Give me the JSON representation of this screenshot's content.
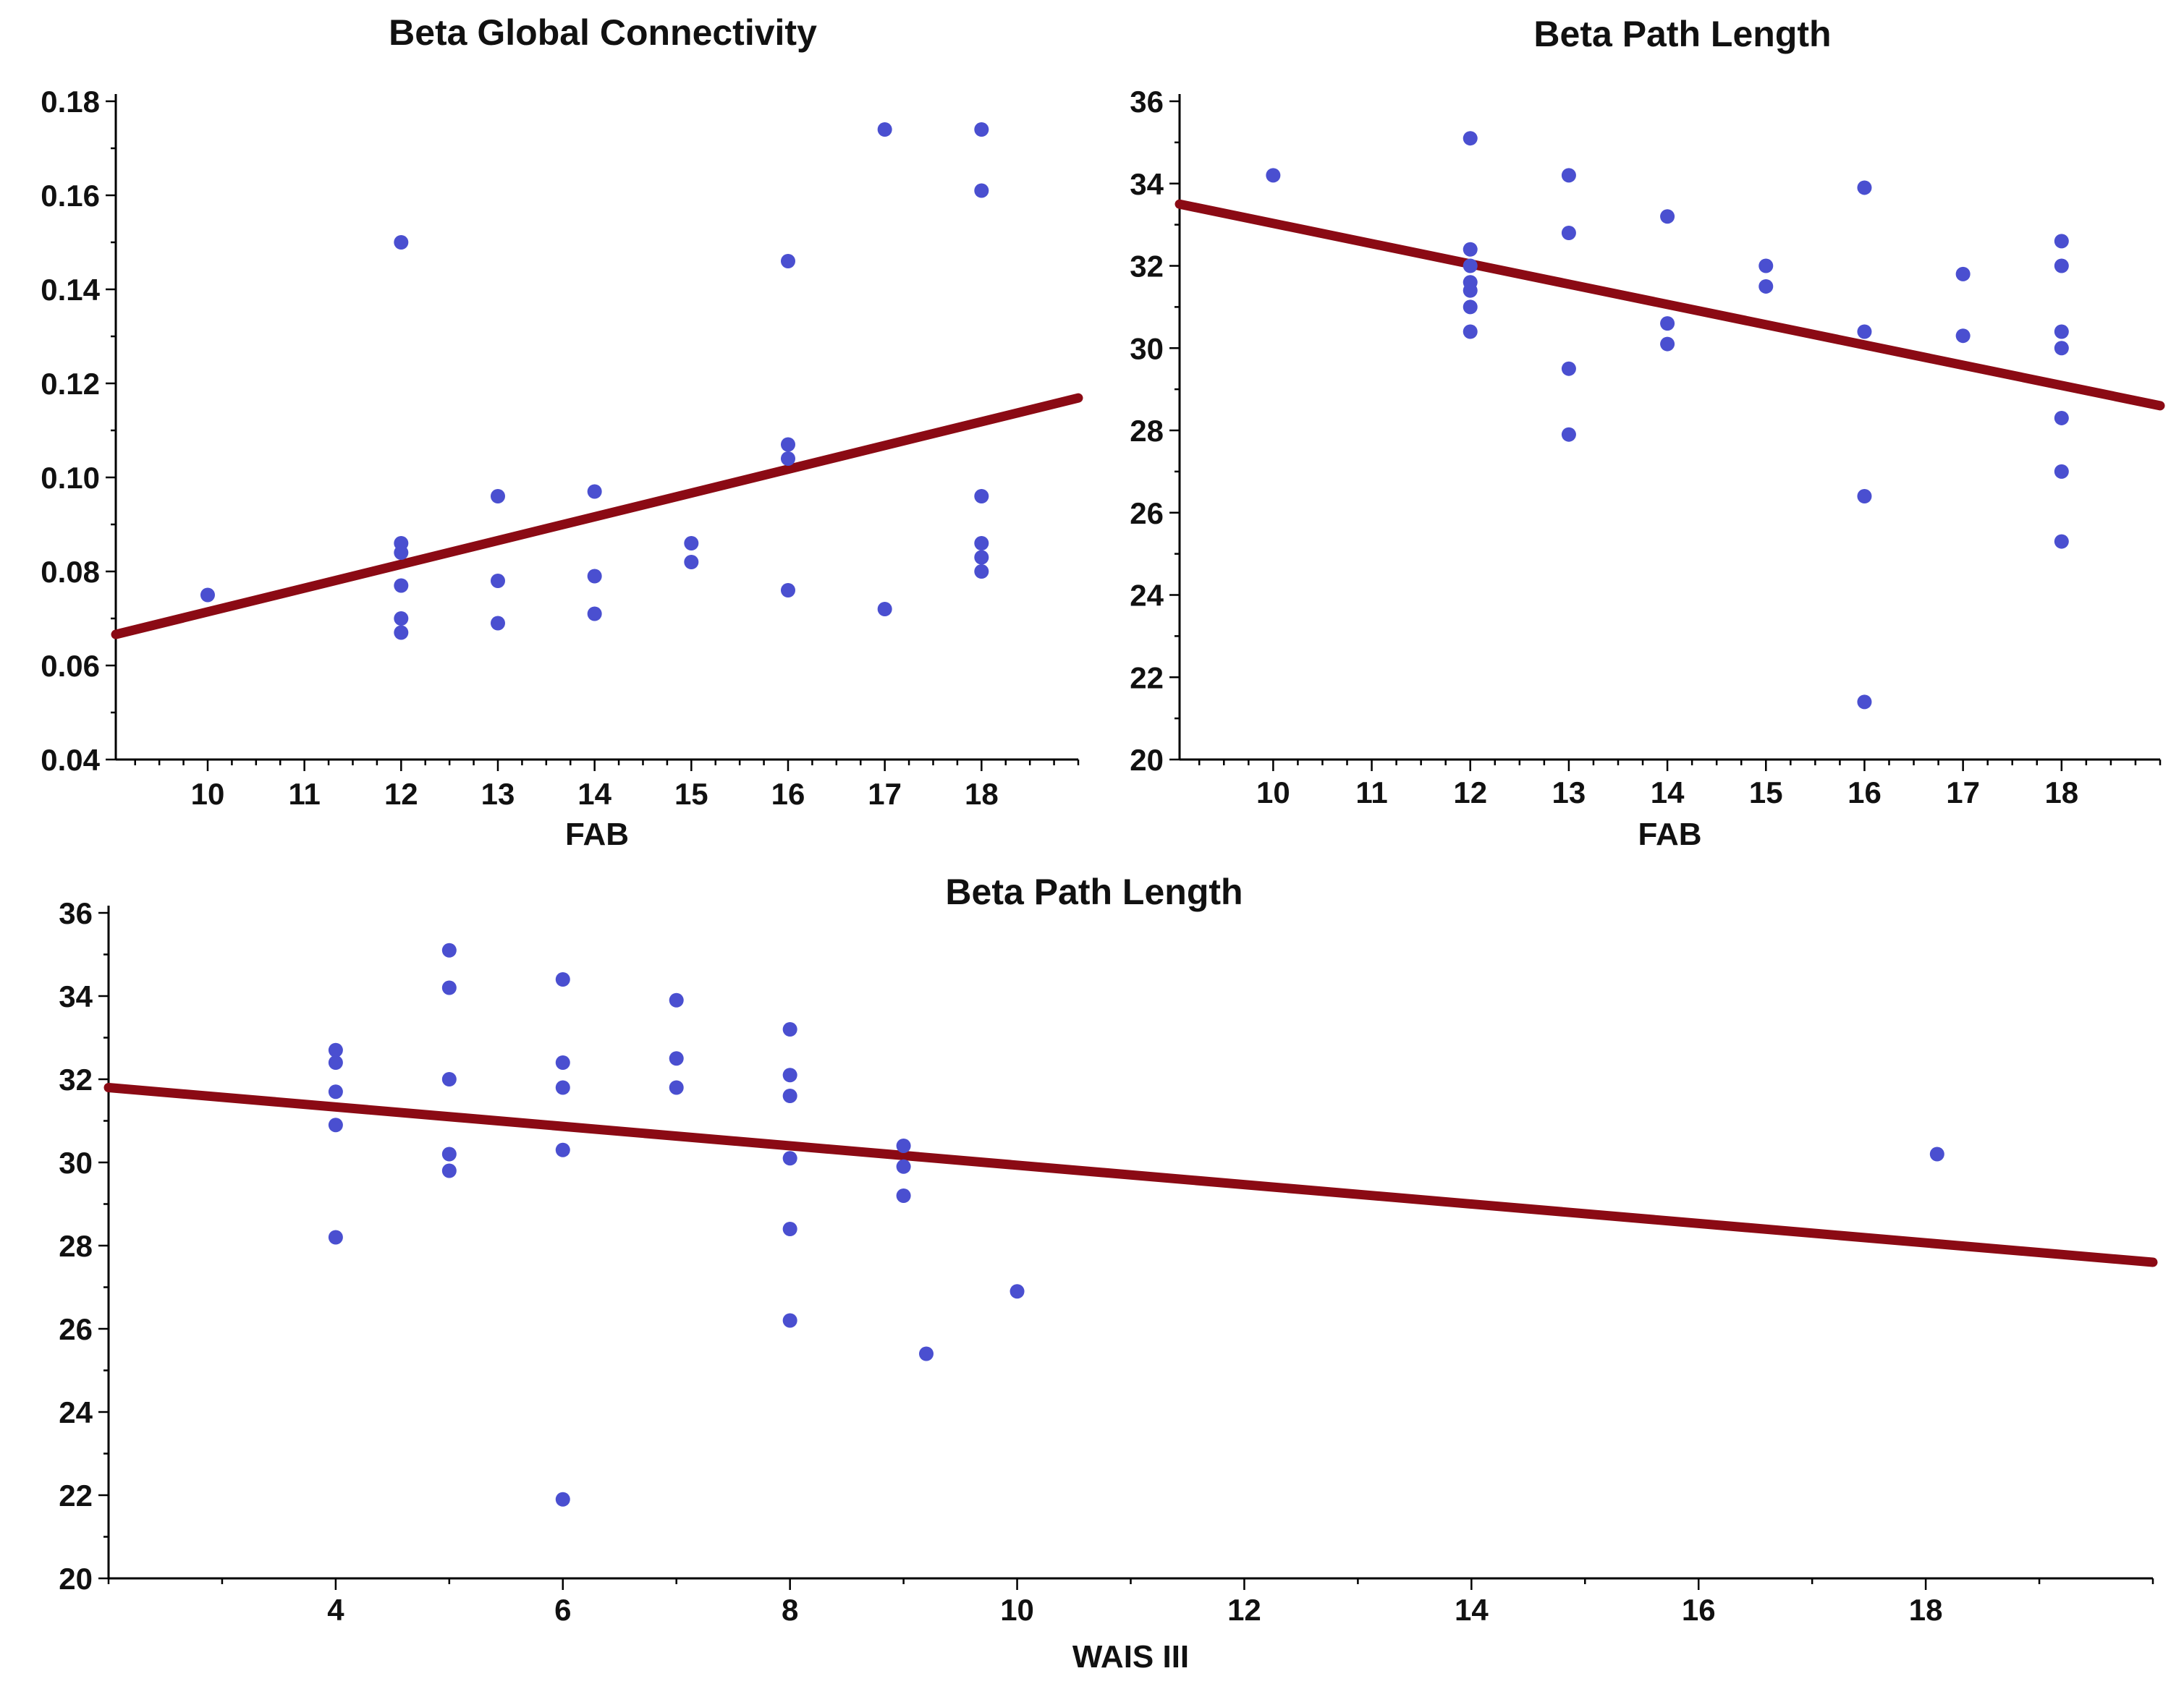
{
  "colors": {
    "point": "#4a4fd0",
    "fit_line": "#8b0a14",
    "axis": "#000000",
    "background": "#ffffff"
  },
  "chart_data": [
    {
      "type": "scatter",
      "title": "Beta Global Connectivity",
      "xlabel": "FAB",
      "ylabel": "",
      "xlim": [
        9.05,
        19
      ],
      "ylim": [
        0.04,
        0.18
      ],
      "xticks": [
        10,
        11,
        12,
        13,
        14,
        15,
        16,
        17,
        18
      ],
      "xtick_labels": [
        "10",
        "11",
        "12",
        "13",
        "14",
        "15",
        "16",
        "17",
        "18"
      ],
      "yticks": [
        0.04,
        0.06,
        0.08,
        0.1,
        0.12,
        0.14,
        0.16,
        0.18
      ],
      "ytick_labels": [
        "0.04",
        "0.06",
        "0.08",
        "0.10",
        "0.12",
        "0.14",
        "0.16",
        "0.18"
      ],
      "points": [
        [
          10,
          0.075
        ],
        [
          12,
          0.15
        ],
        [
          12,
          0.086
        ],
        [
          12,
          0.084
        ],
        [
          12,
          0.077
        ],
        [
          12,
          0.07
        ],
        [
          12,
          0.067
        ],
        [
          13,
          0.096
        ],
        [
          13,
          0.078
        ],
        [
          13,
          0.069
        ],
        [
          14,
          0.097
        ],
        [
          14,
          0.079
        ],
        [
          14,
          0.071
        ],
        [
          15,
          0.086
        ],
        [
          15,
          0.082
        ],
        [
          16,
          0.146
        ],
        [
          16,
          0.107
        ],
        [
          16,
          0.104
        ],
        [
          16,
          0.076
        ],
        [
          17,
          0.174
        ],
        [
          17,
          0.072
        ],
        [
          18,
          0.174
        ],
        [
          18,
          0.161
        ],
        [
          18,
          0.096
        ],
        [
          18,
          0.086
        ],
        [
          18,
          0.083
        ],
        [
          18,
          0.08
        ]
      ],
      "fit_line": [
        [
          9.05,
          0.0666
        ],
        [
          19,
          0.1169
        ]
      ]
    },
    {
      "type": "scatter",
      "title": "Beta Path Length",
      "xlabel": "FAB",
      "ylabel": "",
      "xlim": [
        9.05,
        19
      ],
      "ylim": [
        20,
        36
      ],
      "xticks": [
        10,
        11,
        12,
        13,
        14,
        15,
        16,
        17,
        18
      ],
      "xtick_labels": [
        "10",
        "11",
        "12",
        "13",
        "14",
        "15",
        "16",
        "17",
        "18"
      ],
      "yticks": [
        20,
        22,
        24,
        26,
        28,
        30,
        32,
        34,
        36
      ],
      "ytick_labels": [
        "20",
        "22",
        "24",
        "26",
        "28",
        "30",
        "32",
        "34",
        "36"
      ],
      "points": [
        [
          10,
          34.2
        ],
        [
          12,
          35.1
        ],
        [
          12,
          32.4
        ],
        [
          12,
          32.0
        ],
        [
          12,
          31.6
        ],
        [
          12,
          31.4
        ],
        [
          12,
          31.0
        ],
        [
          12,
          30.4
        ],
        [
          13,
          34.2
        ],
        [
          13,
          32.8
        ],
        [
          13,
          29.5
        ],
        [
          13,
          27.9
        ],
        [
          14,
          33.2
        ],
        [
          14,
          30.6
        ],
        [
          14,
          30.1
        ],
        [
          15,
          32.0
        ],
        [
          15,
          31.5
        ],
        [
          16,
          33.9
        ],
        [
          16,
          30.4
        ],
        [
          16,
          26.4
        ],
        [
          16,
          21.4
        ],
        [
          17,
          31.8
        ],
        [
          17,
          30.3
        ],
        [
          18,
          32.6
        ],
        [
          18,
          32.0
        ],
        [
          18,
          30.4
        ],
        [
          18,
          30.0
        ],
        [
          18,
          28.3
        ],
        [
          18,
          27.0
        ],
        [
          18,
          25.3
        ]
      ],
      "fit_line": [
        [
          9.05,
          33.5
        ],
        [
          19,
          28.6
        ]
      ]
    },
    {
      "type": "scatter",
      "title": "Beta Path Length",
      "xlabel": "WAIS III",
      "ylabel": "",
      "xlim": [
        2,
        20
      ],
      "ylim": [
        20,
        36
      ],
      "xticks": [
        4,
        6,
        8,
        10,
        12,
        14,
        16,
        18
      ],
      "xtick_labels": [
        "4",
        "6",
        "8",
        "10",
        "12",
        "14",
        "16",
        "18"
      ],
      "yticks": [
        20,
        22,
        24,
        26,
        28,
        30,
        32,
        34,
        36
      ],
      "ytick_labels": [
        "20",
        "22",
        "24",
        "26",
        "28",
        "30",
        "32",
        "34",
        "36"
      ],
      "points": [
        [
          4,
          32.7
        ],
        [
          4,
          32.4
        ],
        [
          4,
          31.7
        ],
        [
          4,
          30.9
        ],
        [
          4,
          28.2
        ],
        [
          5,
          35.1
        ],
        [
          5,
          34.2
        ],
        [
          5,
          32.0
        ],
        [
          5,
          30.2
        ],
        [
          5,
          29.8
        ],
        [
          6,
          34.4
        ],
        [
          6,
          32.4
        ],
        [
          6,
          31.8
        ],
        [
          6,
          30.3
        ],
        [
          6,
          21.9
        ],
        [
          7,
          33.9
        ],
        [
          7,
          32.5
        ],
        [
          7,
          31.8
        ],
        [
          8,
          33.2
        ],
        [
          8,
          32.1
        ],
        [
          8,
          31.6
        ],
        [
          8,
          30.1
        ],
        [
          8,
          28.4
        ],
        [
          8,
          26.2
        ],
        [
          9,
          30.4
        ],
        [
          9,
          29.9
        ],
        [
          9,
          29.2
        ],
        [
          9.2,
          25.4
        ],
        [
          10,
          26.9
        ],
        [
          18.1,
          30.2
        ]
      ],
      "fit_line": [
        [
          2,
          31.8
        ],
        [
          20,
          27.6
        ]
      ]
    }
  ]
}
